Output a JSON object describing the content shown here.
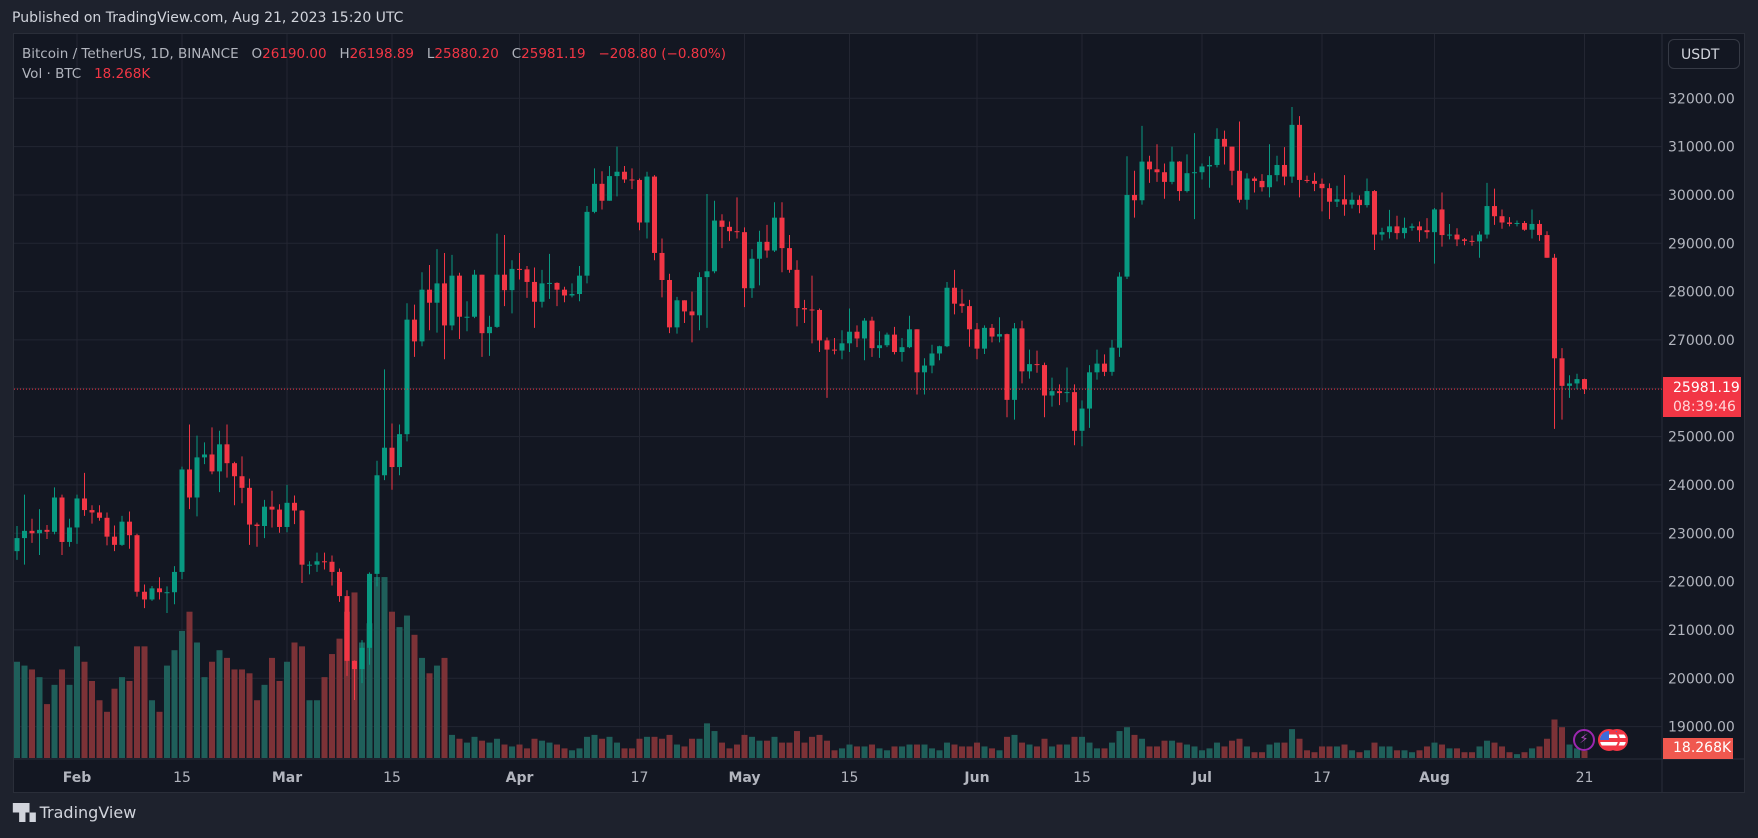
{
  "published": "Published on TradingView.com, Aug 21, 2023 15:20 UTC",
  "legend": {
    "symbol": "Bitcoin / TetherUS, 1D, BINANCE",
    "o_label": "O",
    "o": "26190.00",
    "h_label": "H",
    "h": "26198.89",
    "l_label": "L",
    "l": "25880.20",
    "c_label": "C",
    "c": "25981.19",
    "change": "−208.80 (−0.80%)",
    "vol_label": "Vol · BTC",
    "vol": "18.268K"
  },
  "currency_button": "USDT",
  "last_price": "25981.19",
  "countdown": "08:39:46",
  "last_volume": "18.268K",
  "footer_brand": "TradingView",
  "footer_logo": "17",
  "events": [
    {
      "icon": "lightning-icon",
      "color": "#9c27b0"
    },
    {
      "icon": "us-flag-icon",
      "color": "#f23645"
    },
    {
      "icon": "us-flag-icon",
      "color": "#f23645"
    }
  ],
  "colors": {
    "up": "#089981",
    "down": "#f23645",
    "vol_up": "#1f5f5a",
    "vol_down": "#7c3237",
    "background": "#131722",
    "grid": "#232632",
    "last_price_line": "#f23645"
  },
  "chart_data": {
    "type": "candlestick",
    "start_date": "2023-01-24",
    "end_date": "2023-08-21",
    "interval": "1D",
    "ylim": [
      18350,
      33330
    ],
    "grid": true,
    "y_ticks": [
      19000,
      20000,
      21000,
      22000,
      23000,
      24000,
      25000,
      26000,
      27000,
      28000,
      29000,
      30000,
      31000,
      32000
    ],
    "y_tick_labels": [
      "19000.00",
      "20000.00",
      "21000.00",
      "22000.00",
      "23000.00",
      "24000.00",
      "25000.00",
      "",
      "27000.00",
      "28000.00",
      "29000.00",
      "30000.00",
      "31000.00",
      "32000.00"
    ],
    "x_ticks": [
      {
        "date": "2023-02-01",
        "label": "Feb",
        "bold": true
      },
      {
        "date": "2023-02-15",
        "label": "15"
      },
      {
        "date": "2023-03-01",
        "label": "Mar",
        "bold": true
      },
      {
        "date": "2023-03-15",
        "label": "15"
      },
      {
        "date": "2023-04-01",
        "label": "Apr",
        "bold": true
      },
      {
        "date": "2023-04-17",
        "label": "17"
      },
      {
        "date": "2023-05-01",
        "label": "May",
        "bold": true
      },
      {
        "date": "2023-05-15",
        "label": "15"
      },
      {
        "date": "2023-06-01",
        "label": "Jun",
        "bold": true
      },
      {
        "date": "2023-06-15",
        "label": "15"
      },
      {
        "date": "2023-07-01",
        "label": "Jul",
        "bold": true
      },
      {
        "date": "2023-07-17",
        "label": "17"
      },
      {
        "date": "2023-08-01",
        "label": "Aug",
        "bold": true
      },
      {
        "date": "2023-08-21",
        "label": "21"
      }
    ],
    "first_open": 22630,
    "close": [
      22900,
      23050,
      23000,
      23070,
      23030,
      23740,
      22820,
      23120,
      23720,
      23480,
      23430,
      23320,
      22930,
      22760,
      23240,
      22960,
      21790,
      21630,
      21860,
      21780,
      21780,
      22200,
      24320,
      23740,
      24570,
      24630,
      24280,
      24840,
      24450,
      24180,
      23940,
      23180,
      23150,
      23550,
      23490,
      23130,
      23630,
      23470,
      22350,
      22350,
      22420,
      22410,
      22200,
      21700,
      20360,
      20190,
      20630,
      22160,
      24200,
      24770,
      24370,
      25050,
      27420,
      26970,
      28040,
      27770,
      28170,
      27300,
      28330,
      27480,
      27480,
      28350,
      27140,
      27270,
      28350,
      28030,
      28470,
      28460,
      28200,
      27790,
      28170,
      28180,
      28040,
      27920,
      27950,
      28330,
      29650,
      30230,
      29880,
      30390,
      30480,
      30320,
      30310,
      29430,
      30380,
      28800,
      28240,
      27260,
      27820,
      27590,
      27510,
      28300,
      28420,
      29470,
      29340,
      29250,
      29230,
      28070,
      28680,
      29030,
      28850,
      29530,
      28900,
      28450,
      27660,
      27630,
      27620,
      26990,
      26800,
      26780,
      26930,
      27170,
      27030,
      27400,
      26830,
      26890,
      27110,
      26750,
      26850,
      27220,
      26330,
      26470,
      26720,
      26870,
      28080,
      27750,
      27700,
      27220,
      26820,
      27250,
      27070,
      27120,
      25760,
      27240,
      26350,
      26500,
      26480,
      25850,
      25940,
      25900,
      25920,
      25120,
      25580,
      26330,
      26510,
      26340,
      26840,
      28310,
      30000,
      29890,
      30690,
      30530,
      30470,
      30270,
      30690,
      30080,
      30450,
      30470,
      30590,
      30620,
      31160,
      31000,
      30500,
      29900,
      30340,
      30290,
      30160,
      30410,
      30620,
      30380,
      31450,
      30310,
      30290,
      30230,
      30140,
      29860,
      29910,
      29800,
      29900,
      29790,
      30080,
      29180,
      29230,
      29350,
      29210,
      29320,
      29350,
      29270,
      29230,
      29700,
      29170,
      29180,
      29080,
      29050,
      29040,
      29180,
      29770,
      29560,
      29430,
      29400,
      29420,
      29280,
      29400,
      29170,
      28700,
      26620,
      26050,
      26100,
      26190,
      25981.19
    ],
    "high": [
      23150,
      23800,
      23300,
      23500,
      23170,
      23950,
      23800,
      23300,
      23800,
      24250,
      23580,
      23580,
      23430,
      23160,
      23360,
      23450,
      22990,
      21940,
      21910,
      22090,
      21900,
      22320,
      24380,
      25250,
      25020,
      24880,
      25190,
      25120,
      25250,
      24480,
      24590,
      24130,
      23220,
      23690,
      23880,
      23600,
      24000,
      23780,
      23480,
      22420,
      22600,
      22600,
      22540,
      22270,
      21820,
      20370,
      20790,
      22190,
      24500,
      26390,
      25270,
      25250,
      27760,
      27730,
      28400,
      28550,
      28880,
      28800,
      28760,
      28390,
      27800,
      28450,
      28050,
      27500,
      29200,
      29170,
      28650,
      28800,
      28530,
      28500,
      28450,
      28780,
      28190,
      28100,
      28170,
      28530,
      29770,
      30550,
      30490,
      30600,
      31000,
      30600,
      30550,
      30340,
      30480,
      30410,
      29100,
      28370,
      27890,
      27820,
      28000,
      28400,
      30020,
      29880,
      29600,
      29450,
      29950,
      29330,
      28880,
      29260,
      29380,
      29850,
      29850,
      29170,
      28650,
      27830,
      28330,
      27650,
      27050,
      27040,
      27200,
      27650,
      27300,
      27450,
      27480,
      27180,
      27150,
      27270,
      27040,
      27500,
      27220,
      26620,
      26900,
      26880,
      28200,
      28450,
      28050,
      27830,
      27350,
      27300,
      27330,
      27470,
      27130,
      27350,
      27400,
      26800,
      26780,
      26530,
      26220,
      26080,
      26430,
      26080,
      25750,
      26480,
      26800,
      26700,
      27000,
      28400,
      30800,
      30500,
      31430,
      30810,
      31050,
      30650,
      31000,
      30700,
      30840,
      31280,
      30650,
      30800,
      31380,
      31330,
      31000,
      31520,
      30450,
      30380,
      30430,
      31050,
      30810,
      30990,
      31820,
      31630,
      30400,
      30460,
      30340,
      30240,
      30190,
      30410,
      30050,
      29990,
      30340,
      30100,
      29320,
      29690,
      29570,
      29530,
      29410,
      29450,
      29520,
      29730,
      30050,
      29400,
      29310,
      29110,
      29160,
      29250,
      30250,
      30130,
      29700,
      29540,
      29470,
      29460,
      29700,
      29480,
      29250,
      28780,
      26830,
      26270,
      26300,
      26198.89
    ],
    "low": [
      22450,
      22350,
      22800,
      22550,
      22880,
      22980,
      22550,
      22720,
      22780,
      23360,
      23200,
      23260,
      22750,
      22630,
      22740,
      22680,
      21690,
      21450,
      21600,
      21630,
      21350,
      21530,
      22050,
      23500,
      23350,
      24430,
      24220,
      23850,
      24150,
      23580,
      23620,
      22760,
      22720,
      22900,
      23120,
      23010,
      23020,
      23190,
      21970,
      22150,
      22200,
      22250,
      21920,
      21580,
      20050,
      19550,
      19900,
      20280,
      21900,
      24100,
      23900,
      24200,
      24900,
      26650,
      26870,
      27200,
      27150,
      26600,
      27200,
      27020,
      27180,
      27450,
      26650,
      26670,
      27250,
      27700,
      27550,
      28250,
      27870,
      27250,
      27670,
      27850,
      27700,
      27780,
      27880,
      27800,
      28170,
      29620,
      29700,
      29880,
      29970,
      30250,
      30120,
      29270,
      29100,
      28650,
      27880,
      27140,
      27130,
      27350,
      26950,
      27200,
      27250,
      28380,
      28900,
      29050,
      29100,
      27680,
      27870,
      28130,
      28700,
      28820,
      28400,
      28390,
      27280,
      27350,
      26930,
      26750,
      25800,
      26700,
      26600,
      26750,
      26850,
      26580,
      26650,
      26630,
      26850,
      26700,
      26550,
      26830,
      25870,
      25870,
      26310,
      26580,
      26850,
      27530,
      27560,
      26860,
      26600,
      26710,
      26950,
      26950,
      25400,
      25350,
      26100,
      26200,
      26320,
      25400,
      25620,
      25650,
      25710,
      24820,
      24800,
      25180,
      26180,
      26250,
      26260,
      26650,
      28260,
      29530,
      29800,
      30250,
      30270,
      29920,
      30220,
      29880,
      30050,
      29500,
      30320,
      30150,
      30570,
      30630,
      30200,
      29840,
      29700,
      30050,
      30070,
      29950,
      30280,
      30200,
      30250,
      29950,
      30250,
      30080,
      29660,
      29500,
      29750,
      29570,
      29720,
      29620,
      29740,
      28860,
      29060,
      29100,
      29080,
      29100,
      29260,
      29030,
      29100,
      28580,
      28930,
      29080,
      28940,
      28960,
      28950,
      28700,
      29100,
      29380,
      29300,
      29350,
      29350,
      29260,
      29100,
      29050,
      28700,
      25160,
      25350,
      25800,
      25980,
      25880.2
    ],
    "volume_k": [
      250,
      240,
      230,
      210,
      140,
      190,
      230,
      190,
      290,
      250,
      200,
      150,
      120,
      180,
      210,
      200,
      290,
      290,
      150,
      120,
      240,
      280,
      330,
      380,
      300,
      210,
      250,
      280,
      260,
      230,
      230,
      220,
      150,
      190,
      260,
      200,
      250,
      300,
      290,
      150,
      150,
      210,
      270,
      310,
      380,
      430,
      300,
      350,
      470,
      470,
      380,
      340,
      370,
      320,
      260,
      220,
      240,
      260,
      60,
      50,
      40,
      55,
      45,
      40,
      50,
      35,
      30,
      35,
      25,
      50,
      45,
      40,
      35,
      25,
      20,
      25,
      55,
      60,
      50,
      55,
      40,
      25,
      25,
      50,
      55,
      55,
      50,
      60,
      35,
      30,
      50,
      50,
      90,
      70,
      40,
      25,
      35,
      60,
      55,
      45,
      45,
      55,
      40,
      40,
      70,
      40,
      55,
      60,
      45,
      20,
      25,
      35,
      30,
      30,
      35,
      25,
      20,
      30,
      30,
      35,
      35,
      35,
      25,
      20,
      40,
      35,
      30,
      30,
      40,
      30,
      25,
      20,
      55,
      60,
      40,
      35,
      30,
      50,
      30,
      35,
      35,
      55,
      55,
      40,
      25,
      25,
      40,
      70,
      80,
      60,
      50,
      30,
      30,
      45,
      45,
      40,
      35,
      30,
      20,
      25,
      40,
      30,
      45,
      50,
      30,
      15,
      15,
      35,
      40,
      40,
      75,
      50,
      20,
      15,
      30,
      30,
      30,
      35,
      20,
      15,
      20,
      40,
      30,
      30,
      20,
      20,
      15,
      20,
      30,
      40,
      35,
      25,
      25,
      15,
      15,
      30,
      45,
      40,
      30,
      15,
      10,
      15,
      25,
      30,
      50,
      100,
      80,
      35,
      25,
      18.268
    ]
  }
}
